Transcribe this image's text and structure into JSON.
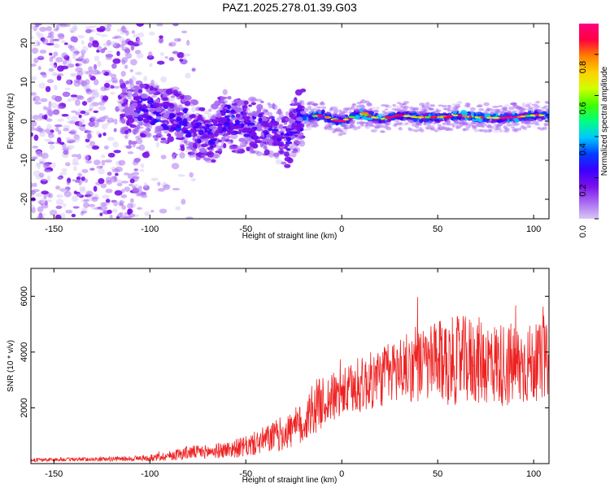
{
  "title": "PAZ1.2025.278.01.39.G03",
  "chart_data": [
    {
      "type": "heatmap",
      "name": "spectrogram",
      "xlabel": "Height of straight line (km)",
      "ylabel": "Frequency (Hz)",
      "xlim": [
        -162,
        108
      ],
      "ylim": [
        -25,
        25
      ],
      "xticks": [
        -150,
        -100,
        -50,
        0,
        50,
        100
      ],
      "yticks": [
        -20,
        -10,
        0,
        10,
        20
      ],
      "colorbar": {
        "label": "Normalized spectral amplitude",
        "range": [
          0,
          0.95
        ],
        "ticks": [
          0.0,
          0.2,
          0.4,
          0.6,
          0.8
        ],
        "colormap": [
          "#d8c8f5",
          "#a86af2",
          "#7a10ea",
          "#3a00ff",
          "#0040ff",
          "#00c8ff",
          "#00ff80",
          "#40ff00",
          "#d0ff00",
          "#ffd000",
          "#ff8000",
          "#ff0040",
          "#ff0080"
        ]
      },
      "ridge": {
        "description_points": [
          [
            -105,
            3.5
          ],
          [
            -95,
            2
          ],
          [
            -85,
            0.5
          ],
          [
            -75,
            -2.5
          ],
          [
            -68,
            -4
          ],
          [
            -60,
            1
          ],
          [
            -55,
            -1
          ],
          [
            -45,
            -1
          ],
          [
            -35,
            -3
          ],
          [
            -28,
            -5
          ],
          [
            -22,
            1
          ],
          [
            -10,
            1.5
          ],
          [
            -5,
            0.5
          ],
          [
            0,
            0
          ],
          [
            10,
            2
          ],
          [
            20,
            0.5
          ],
          [
            30,
            1.5
          ],
          [
            40,
            1
          ],
          [
            50,
            1
          ],
          [
            60,
            1.5
          ],
          [
            70,
            1
          ],
          [
            80,
            0.8
          ],
          [
            90,
            1
          ],
          [
            100,
            1.5
          ],
          [
            108,
            1.5
          ]
        ]
      }
    },
    {
      "type": "line",
      "name": "snr",
      "xlabel": "Height of straight line (km)",
      "ylabel": "SNR (10 * v/v)",
      "xlim": [
        -162,
        108
      ],
      "ylim": [
        0,
        7000
      ],
      "xticks": [
        -150,
        -100,
        -50,
        0,
        50,
        100
      ],
      "yticks": [
        2000,
        4000,
        6000
      ],
      "color": "#ee2222",
      "envelope": {
        "x": [
          -162,
          -140,
          -120,
          -100,
          -90,
          -80,
          -70,
          -60,
          -50,
          -40,
          -30,
          -20,
          -15,
          -10,
          0,
          10,
          20,
          30,
          40,
          50,
          60,
          70,
          80,
          90,
          100,
          108
        ],
        "mean": [
          130,
          150,
          160,
          200,
          280,
          400,
          420,
          500,
          600,
          850,
          1100,
          1400,
          2000,
          2200,
          2500,
          2800,
          3100,
          3400,
          3500,
          3600,
          3700,
          3700,
          3600,
          3500,
          3600,
          3700
        ],
        "spread": [
          60,
          70,
          80,
          120,
          180,
          250,
          250,
          300,
          380,
          500,
          650,
          800,
          1000,
          900,
          900,
          1000,
          1100,
          1200,
          1300,
          1500,
          1600,
          1600,
          1500,
          1600,
          1400,
          1300
        ]
      }
    }
  ]
}
